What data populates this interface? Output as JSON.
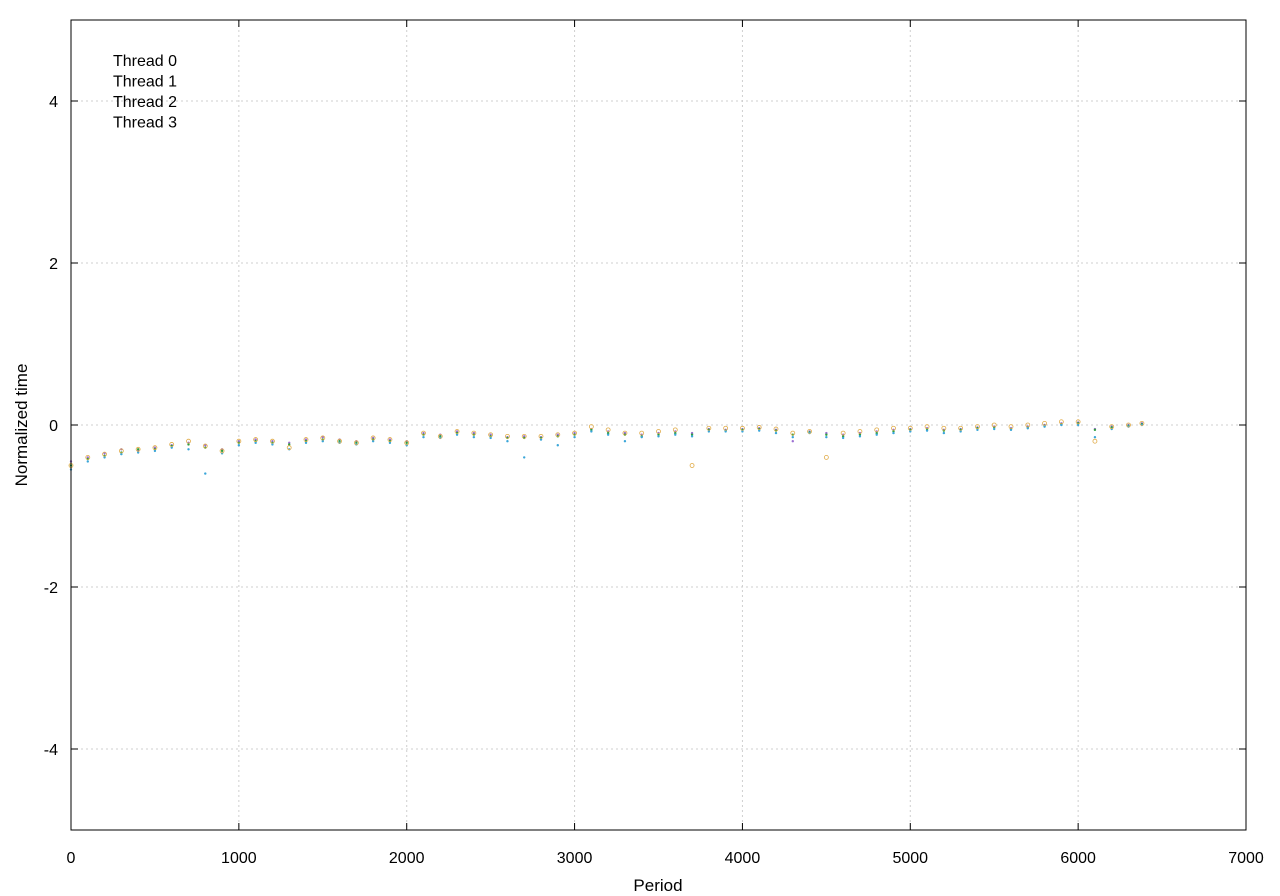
{
  "chart_data": {
    "type": "scatter",
    "title": "",
    "xlabel": "Period",
    "ylabel": "Normalized time",
    "xlim": [
      0,
      7000
    ],
    "ylim": [
      -5,
      5
    ],
    "xticks": [
      0,
      1000,
      2000,
      3000,
      4000,
      5000,
      6000,
      7000
    ],
    "yticks": [
      -4,
      -2,
      0,
      2,
      4
    ],
    "xtick_labels": [
      "0",
      "1000",
      "2000",
      "3000",
      "4000",
      "5000",
      "6000",
      "7000"
    ],
    "ytick_labels": [
      "-4",
      "-2",
      "0",
      "2",
      "4"
    ],
    "grid": true,
    "legend_position": "top-left",
    "series": [
      {
        "name": "Thread 0",
        "color": "#9c6fd2",
        "marker": "dot",
        "x": [
          0,
          100,
          200,
          300,
          400,
          500,
          600,
          700,
          800,
          900,
          1000,
          1100,
          1200,
          1300,
          1400,
          1500,
          1600,
          1700,
          1800,
          1900,
          2000,
          2100,
          2200,
          2300,
          2400,
          2500,
          2600,
          2700,
          2800,
          2900,
          3000,
          3100,
          3200,
          3300,
          3400,
          3500,
          3600,
          3700,
          3800,
          3900,
          4000,
          4100,
          4200,
          4300,
          4400,
          4500,
          4600,
          4700,
          4800,
          4900,
          5000,
          5100,
          5200,
          5300,
          5400,
          5500,
          5600,
          5700,
          5800,
          5900,
          6000,
          6100,
          6200,
          6300,
          6380
        ],
        "y": [
          -0.45,
          -0.4,
          -0.35,
          -0.3,
          -0.32,
          -0.28,
          -0.25,
          -0.22,
          -0.25,
          -0.3,
          -0.2,
          -0.18,
          -0.2,
          -0.22,
          -0.18,
          -0.15,
          -0.18,
          -0.2,
          -0.16,
          -0.18,
          -0.2,
          -0.1,
          -0.12,
          -0.08,
          -0.1,
          -0.12,
          -0.15,
          -0.14,
          -0.15,
          -0.12,
          -0.1,
          -0.05,
          -0.08,
          -0.1,
          -0.12,
          -0.1,
          -0.08,
          -0.1,
          -0.05,
          -0.06,
          -0.05,
          -0.04,
          -0.06,
          -0.2,
          -0.08,
          -0.1,
          -0.12,
          -0.1,
          -0.08,
          -0.06,
          -0.05,
          -0.04,
          -0.06,
          -0.05,
          -0.03,
          -0.02,
          -0.04,
          -0.02,
          0.0,
          0.02,
          0.03,
          -0.05,
          -0.02,
          0.0,
          0.02
        ]
      },
      {
        "name": "Thread 1",
        "color": "#2f9e3f",
        "marker": "dot",
        "x": [
          0,
          100,
          200,
          300,
          400,
          500,
          600,
          700,
          800,
          900,
          1000,
          1100,
          1200,
          1300,
          1400,
          1500,
          1600,
          1700,
          1800,
          1900,
          2000,
          2100,
          2200,
          2300,
          2400,
          2500,
          2600,
          2700,
          2800,
          2900,
          3000,
          3100,
          3200,
          3300,
          3400,
          3500,
          3600,
          3700,
          3800,
          3900,
          4000,
          4100,
          4200,
          4300,
          4400,
          4500,
          4600,
          4700,
          4800,
          4900,
          5000,
          5100,
          5200,
          5300,
          5400,
          5500,
          5600,
          5700,
          5800,
          5900,
          6000,
          6100,
          6200,
          6300,
          6380
        ],
        "y": [
          -0.5,
          -0.42,
          -0.38,
          -0.34,
          -0.3,
          -0.3,
          -0.26,
          -0.24,
          -0.28,
          -0.32,
          -0.22,
          -0.2,
          -0.22,
          -0.24,
          -0.2,
          -0.18,
          -0.2,
          -0.22,
          -0.18,
          -0.2,
          -0.22,
          -0.12,
          -0.14,
          -0.1,
          -0.12,
          -0.14,
          -0.16,
          -0.16,
          -0.16,
          -0.14,
          -0.12,
          -0.06,
          -0.1,
          -0.12,
          -0.14,
          -0.12,
          -0.1,
          -0.12,
          -0.06,
          -0.07,
          -0.06,
          -0.05,
          -0.07,
          -0.12,
          -0.09,
          -0.12,
          -0.14,
          -0.12,
          -0.1,
          -0.08,
          -0.06,
          -0.05,
          -0.07,
          -0.06,
          -0.04,
          -0.03,
          -0.05,
          -0.03,
          -0.01,
          0.01,
          0.02,
          -0.06,
          -0.03,
          -0.01,
          0.01
        ]
      },
      {
        "name": "Thread 2",
        "color": "#3aa6d9",
        "marker": "dot",
        "x": [
          0,
          100,
          200,
          300,
          400,
          500,
          600,
          700,
          800,
          900,
          1000,
          1100,
          1200,
          1300,
          1400,
          1500,
          1600,
          1700,
          1800,
          1900,
          2000,
          2100,
          2200,
          2300,
          2400,
          2500,
          2600,
          2700,
          2800,
          2900,
          3000,
          3100,
          3200,
          3300,
          3400,
          3500,
          3600,
          3700,
          3800,
          3900,
          4000,
          4100,
          4200,
          4300,
          4400,
          4500,
          4600,
          4700,
          4800,
          4900,
          5000,
          5100,
          5200,
          5300,
          5400,
          5500,
          5600,
          5700,
          5800,
          5900,
          6000,
          6100,
          6200,
          6300,
          6380
        ],
        "y": [
          -0.55,
          -0.45,
          -0.4,
          -0.36,
          -0.34,
          -0.32,
          -0.28,
          -0.3,
          -0.6,
          -0.35,
          -0.25,
          -0.22,
          -0.24,
          -0.3,
          -0.22,
          -0.2,
          -0.22,
          -0.24,
          -0.2,
          -0.22,
          -0.25,
          -0.15,
          -0.16,
          -0.12,
          -0.15,
          -0.16,
          -0.2,
          -0.4,
          -0.18,
          -0.25,
          -0.15,
          -0.08,
          -0.12,
          -0.2,
          -0.15,
          -0.14,
          -0.12,
          -0.14,
          -0.08,
          -0.08,
          -0.08,
          -0.07,
          -0.1,
          -0.15,
          -0.1,
          -0.15,
          -0.16,
          -0.14,
          -0.12,
          -0.1,
          -0.08,
          -0.07,
          -0.1,
          -0.08,
          -0.06,
          -0.05,
          -0.06,
          -0.04,
          -0.02,
          0.0,
          0.0,
          -0.15,
          -0.05,
          -0.02,
          0.0
        ]
      },
      {
        "name": "Thread 3",
        "color": "#e0aa45",
        "marker": "circle",
        "x": [
          0,
          100,
          200,
          300,
          400,
          500,
          600,
          700,
          800,
          900,
          1000,
          1100,
          1200,
          1300,
          1400,
          1500,
          1600,
          1700,
          1800,
          1900,
          2000,
          2100,
          2200,
          2300,
          2400,
          2500,
          2600,
          2700,
          2800,
          2900,
          3000,
          3100,
          3200,
          3300,
          3400,
          3500,
          3600,
          3700,
          3800,
          3900,
          4000,
          4100,
          4200,
          4300,
          4400,
          4500,
          4600,
          4700,
          4800,
          4900,
          5000,
          5100,
          5200,
          5300,
          5400,
          5500,
          5600,
          5700,
          5800,
          5900,
          6000,
          6100,
          6200,
          6300,
          6380
        ],
        "y": [
          -0.5,
          -0.4,
          -0.36,
          -0.32,
          -0.3,
          -0.28,
          -0.24,
          -0.2,
          -0.26,
          -0.32,
          -0.2,
          -0.18,
          -0.2,
          -0.28,
          -0.18,
          -0.16,
          -0.2,
          -0.22,
          -0.16,
          -0.18,
          -0.22,
          -0.1,
          -0.14,
          -0.08,
          -0.1,
          -0.12,
          -0.14,
          -0.14,
          -0.14,
          -0.12,
          -0.1,
          -0.02,
          -0.06,
          -0.1,
          -0.1,
          -0.08,
          -0.06,
          -0.5,
          -0.04,
          -0.04,
          -0.04,
          -0.03,
          -0.05,
          -0.1,
          -0.08,
          -0.4,
          -0.1,
          -0.08,
          -0.06,
          -0.04,
          -0.04,
          -0.02,
          -0.04,
          -0.04,
          -0.02,
          0.0,
          -0.02,
          0.0,
          0.02,
          0.04,
          0.04,
          -0.2,
          -0.02,
          0.0,
          0.02
        ]
      }
    ]
  }
}
